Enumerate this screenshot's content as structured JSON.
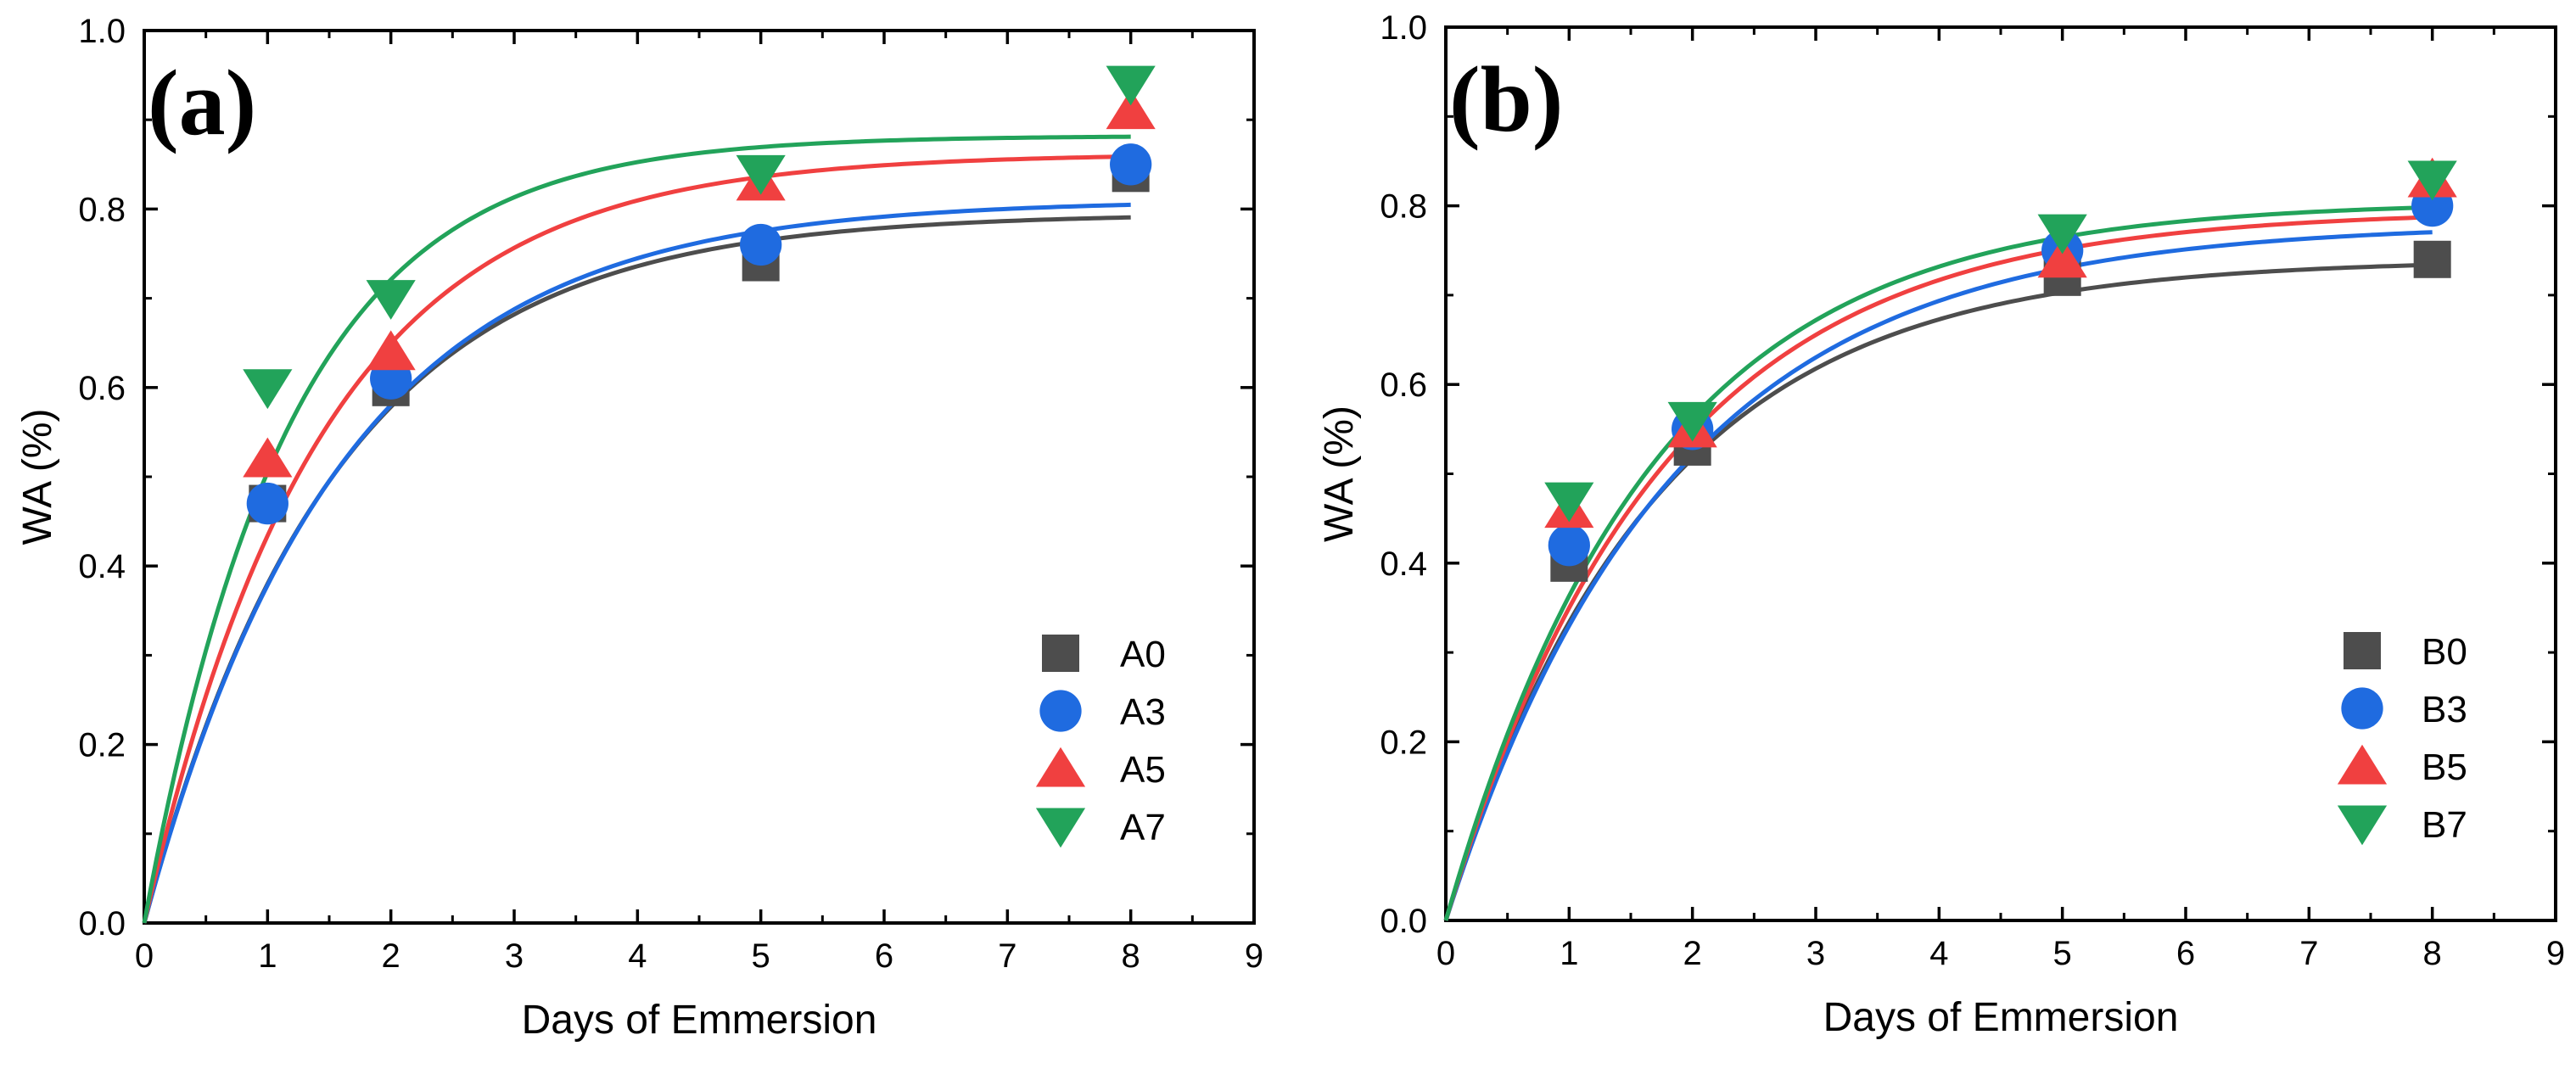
{
  "colors": {
    "A0": "#4d4d4d",
    "A3": "#1f6be0",
    "A5": "#f04040",
    "A7": "#22a35a",
    "B0": "#4d4d4d",
    "B3": "#1f6be0",
    "B5": "#f04040",
    "B7": "#22a35a"
  },
  "chart_data": [
    {
      "type": "scatter",
      "panel_label": "(a)",
      "title": "",
      "xlabel": "Days of Emmersion",
      "ylabel": "WA (%)",
      "xlim": [
        0,
        9
      ],
      "ylim": [
        0,
        1.0
      ],
      "xticks": [
        "0",
        "1",
        "2",
        "3",
        "4",
        "5",
        "6",
        "7",
        "8",
        "9"
      ],
      "yticks": [
        "0.0",
        "0.2",
        "0.4",
        "0.6",
        "0.8",
        "1.0"
      ],
      "legend_position": "lower-right",
      "series": [
        {
          "name": "A0",
          "marker": "square",
          "x": [
            1,
            2,
            5,
            8
          ],
          "y": [
            0.47,
            0.6,
            0.74,
            0.84
          ],
          "fit": {
            "model": "exponential-rise",
            "asymptote": 0.795,
            "rate": 0.65
          }
        },
        {
          "name": "A3",
          "marker": "circle",
          "x": [
            1,
            2,
            5,
            8
          ],
          "y": [
            0.47,
            0.61,
            0.76,
            0.85
          ],
          "fit": {
            "model": "exponential-rise",
            "asymptote": 0.81,
            "rate": 0.63
          }
        },
        {
          "name": "A5",
          "marker": "triangle-up",
          "x": [
            1,
            2,
            5,
            8
          ],
          "y": [
            0.52,
            0.64,
            0.83,
            0.91
          ],
          "fit": {
            "model": "exponential-rise",
            "asymptote": 0.862,
            "rate": 0.7
          }
        },
        {
          "name": "A7",
          "marker": "triangle-down",
          "x": [
            1,
            2,
            5,
            8
          ],
          "y": [
            0.6,
            0.7,
            0.84,
            0.94
          ],
          "fit": {
            "model": "exponential-rise",
            "asymptote": 0.882,
            "rate": 0.85
          }
        }
      ]
    },
    {
      "type": "scatter",
      "panel_label": "(b)",
      "title": "",
      "xlabel": "Days of Emmersion",
      "ylabel": "WA (%)",
      "xlim": [
        0,
        9
      ],
      "ylim": [
        0,
        1.0
      ],
      "xticks": [
        "0",
        "1",
        "2",
        "3",
        "4",
        "5",
        "6",
        "7",
        "8",
        "9"
      ],
      "yticks": [
        "0.0",
        "0.2",
        "0.4",
        "0.6",
        "0.8",
        "1.0"
      ],
      "legend_position": "lower-right",
      "series": [
        {
          "name": "B0",
          "marker": "square",
          "x": [
            1,
            2,
            5,
            8
          ],
          "y": [
            0.4,
            0.53,
            0.72,
            0.74
          ],
          "fit": {
            "model": "exponential-rise",
            "asymptote": 0.74,
            "rate": 0.6
          }
        },
        {
          "name": "B3",
          "marker": "circle",
          "x": [
            1,
            2,
            5,
            8
          ],
          "y": [
            0.42,
            0.55,
            0.75,
            0.8
          ],
          "fit": {
            "model": "exponential-rise",
            "asymptote": 0.78,
            "rate": 0.55
          }
        },
        {
          "name": "B5",
          "marker": "triangle-up",
          "x": [
            1,
            2,
            5,
            8
          ],
          "y": [
            0.46,
            0.55,
            0.74,
            0.83
          ],
          "fit": {
            "model": "exponential-rise",
            "asymptote": 0.795,
            "rate": 0.58
          }
        },
        {
          "name": "B7",
          "marker": "triangle-down",
          "x": [
            1,
            2,
            5,
            8
          ],
          "y": [
            0.47,
            0.56,
            0.77,
            0.83
          ],
          "fit": {
            "model": "exponential-rise",
            "asymptote": 0.805,
            "rate": 0.6
          }
        }
      ]
    }
  ]
}
